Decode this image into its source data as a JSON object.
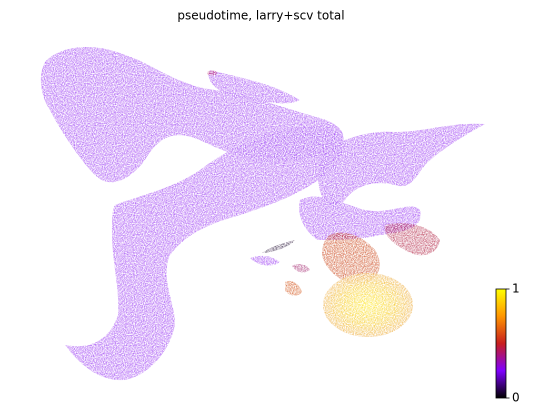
{
  "chart_data": {
    "type": "scatter",
    "title": "pseudotime, larry+scv total",
    "colormap": [
      "#000000",
      "#7f00ff",
      "#c81e1e",
      "#ff9600",
      "#ffff00"
    ],
    "colorbar": {
      "lim": [
        0,
        1
      ],
      "ticks": [
        0,
        1
      ]
    }
  }
}
